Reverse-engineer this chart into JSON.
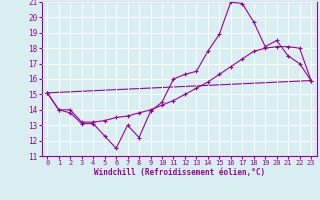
{
  "xlabel": "Windchill (Refroidissement éolien,°C)",
  "xlim": [
    -0.5,
    23.5
  ],
  "ylim": [
    11,
    21
  ],
  "xticks": [
    0,
    1,
    2,
    3,
    4,
    5,
    6,
    7,
    8,
    9,
    10,
    11,
    12,
    13,
    14,
    15,
    16,
    17,
    18,
    19,
    20,
    21,
    22,
    23
  ],
  "yticks": [
    11,
    12,
    13,
    14,
    15,
    16,
    17,
    18,
    19,
    20,
    21
  ],
  "line_color": "#990099",
  "bg_color": "#d8eef0",
  "line1_x": [
    0,
    1,
    2,
    3,
    4,
    5,
    6,
    7,
    8,
    9,
    10,
    11,
    12,
    13,
    14,
    15,
    16,
    17,
    18,
    19,
    20,
    21,
    22,
    23
  ],
  "line1_y": [
    15.1,
    14.0,
    13.8,
    13.1,
    13.1,
    12.3,
    11.5,
    13.0,
    12.2,
    13.9,
    14.5,
    16.0,
    16.3,
    16.5,
    17.8,
    18.9,
    21.0,
    20.9,
    19.7,
    18.1,
    18.5,
    17.5,
    17.0,
    15.9
  ],
  "line2_x": [
    0,
    1,
    2,
    3,
    4,
    5,
    6,
    7,
    8,
    9,
    10,
    11,
    12,
    13,
    14,
    15,
    16,
    17,
    18,
    19,
    20,
    21,
    22,
    23
  ],
  "line2_y": [
    15.1,
    14.0,
    14.0,
    13.2,
    13.2,
    13.3,
    13.5,
    13.6,
    13.8,
    14.0,
    14.3,
    14.6,
    15.0,
    15.4,
    15.8,
    16.3,
    16.8,
    17.3,
    17.8,
    18.0,
    18.1,
    18.1,
    18.0,
    15.9
  ],
  "line3_x": [
    0,
    23
  ],
  "line3_y": [
    15.1,
    15.9
  ]
}
